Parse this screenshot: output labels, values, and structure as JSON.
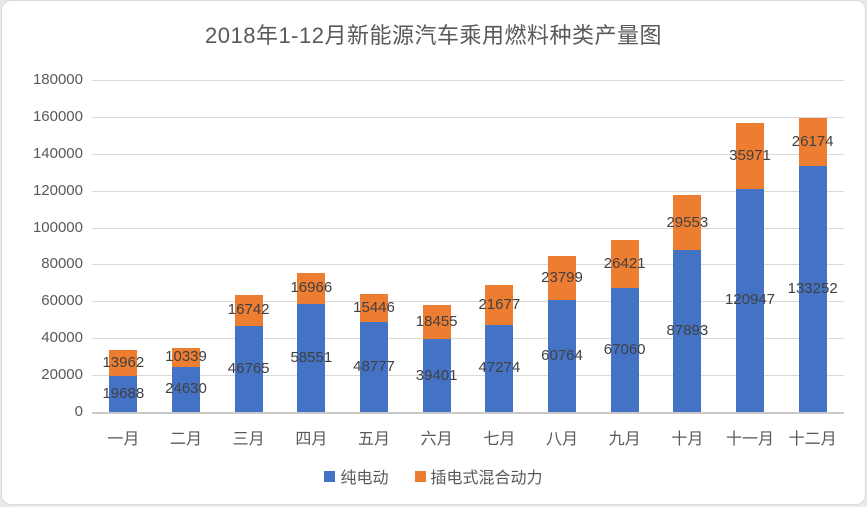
{
  "chart_data": {
    "type": "bar",
    "stacked": true,
    "title": "2018年1-12月新能源汽车乘用燃料种类产量图",
    "categories": [
      "一月",
      "二月",
      "三月",
      "四月",
      "五月",
      "六月",
      "七月",
      "八月",
      "九月",
      "十月",
      "十一月",
      "十二月"
    ],
    "series": [
      {
        "name": "纯电动",
        "color": "#4472C4",
        "values": [
          19688,
          24630,
          46765,
          58551,
          48777,
          39401,
          47274,
          60764,
          67060,
          87893,
          120947,
          133252
        ]
      },
      {
        "name": "插电式混合动力",
        "color": "#ED7D31",
        "values": [
          13962,
          10339,
          16742,
          16966,
          15446,
          18455,
          21677,
          23799,
          26421,
          29553,
          35971,
          26174
        ]
      }
    ],
    "ylim": [
      0,
      180000
    ],
    "ytick_step": 20000,
    "yticks": [
      0,
      20000,
      40000,
      60000,
      80000,
      100000,
      120000,
      140000,
      160000,
      180000
    ],
    "grid": true,
    "data_labels": true,
    "legend_position": "bottom"
  },
  "colors": {
    "blue": "#4472C4",
    "orange": "#ED7D31",
    "gridline": "#D9D9D9",
    "axis_text": "#595959",
    "data_label_text": "#404040",
    "background": "#FFFFFF",
    "border": "#D9D9D9"
  }
}
